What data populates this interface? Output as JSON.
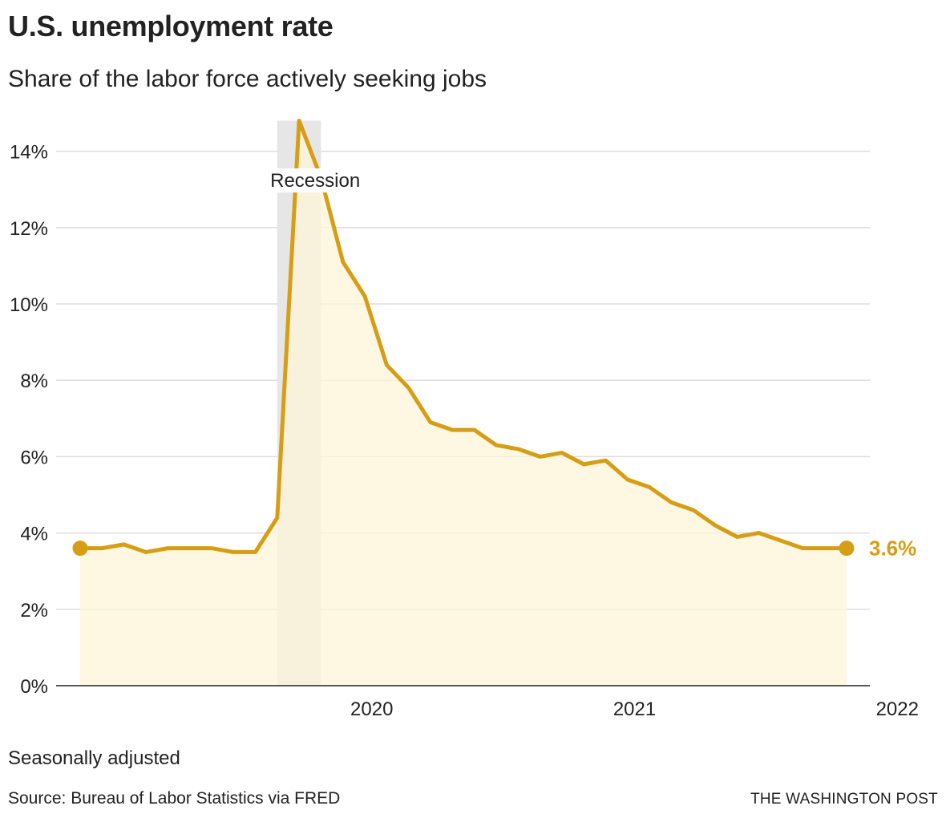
{
  "header": {
    "title": "U.S. unemployment rate",
    "subtitle": "Share of the labor force actively seeking jobs"
  },
  "footer": {
    "note": "Seasonally adjusted",
    "source": "Source: Bureau of Labor Statistics via FRED",
    "credit": "THE WASHINGTON POST"
  },
  "colors": {
    "line": "#d69e15",
    "area": "#fdf4d8",
    "recession": "#e6e6e6",
    "grid": "#dddddd",
    "axis": "#222222"
  },
  "chart_data": {
    "type": "area",
    "title": "U.S. unemployment rate",
    "subtitle": "Share of the labor force actively seeking jobs",
    "xlabel": "",
    "ylabel": "",
    "x_tick_labels": [
      "2020",
      "2021",
      "2022"
    ],
    "y_tick_labels": [
      "0%",
      "2%",
      "4%",
      "6%",
      "8%",
      "10%",
      "12%",
      "14%"
    ],
    "y_ticks": [
      0,
      2,
      4,
      6,
      8,
      10,
      12,
      14
    ],
    "ylim": [
      0,
      14.8
    ],
    "xlim": [
      "2019-05",
      "2022-04"
    ],
    "grid": true,
    "legend": "none",
    "recession": {
      "label": "Recession",
      "start": "2020-02",
      "end": "2020-04"
    },
    "end_label": "3.6%",
    "series": [
      {
        "x": [
          "2019-05",
          "2019-06",
          "2019-07",
          "2019-08",
          "2019-09",
          "2019-10",
          "2019-11",
          "2019-12",
          "2020-01",
          "2020-02",
          "2020-03",
          "2020-04",
          "2020-05",
          "2020-06",
          "2020-07",
          "2020-08",
          "2020-09",
          "2020-10",
          "2020-11",
          "2020-12",
          "2021-01",
          "2021-02",
          "2021-03",
          "2021-04",
          "2021-05",
          "2021-06",
          "2021-07",
          "2021-08",
          "2021-09",
          "2021-10",
          "2021-11",
          "2021-12",
          "2022-01",
          "2022-02",
          "2022-03",
          "2022-04"
        ],
        "values": [
          3.6,
          3.6,
          3.7,
          3.5,
          3.6,
          3.6,
          3.6,
          3.5,
          3.5,
          4.4,
          14.8,
          13.3,
          11.1,
          10.2,
          8.4,
          7.8,
          6.9,
          6.7,
          6.7,
          6.3,
          6.2,
          6.0,
          6.1,
          5.8,
          5.9,
          5.4,
          5.2,
          4.8,
          4.6,
          4.2,
          3.9,
          4.0,
          3.8,
          3.6,
          3.6,
          3.6
        ]
      }
    ]
  }
}
